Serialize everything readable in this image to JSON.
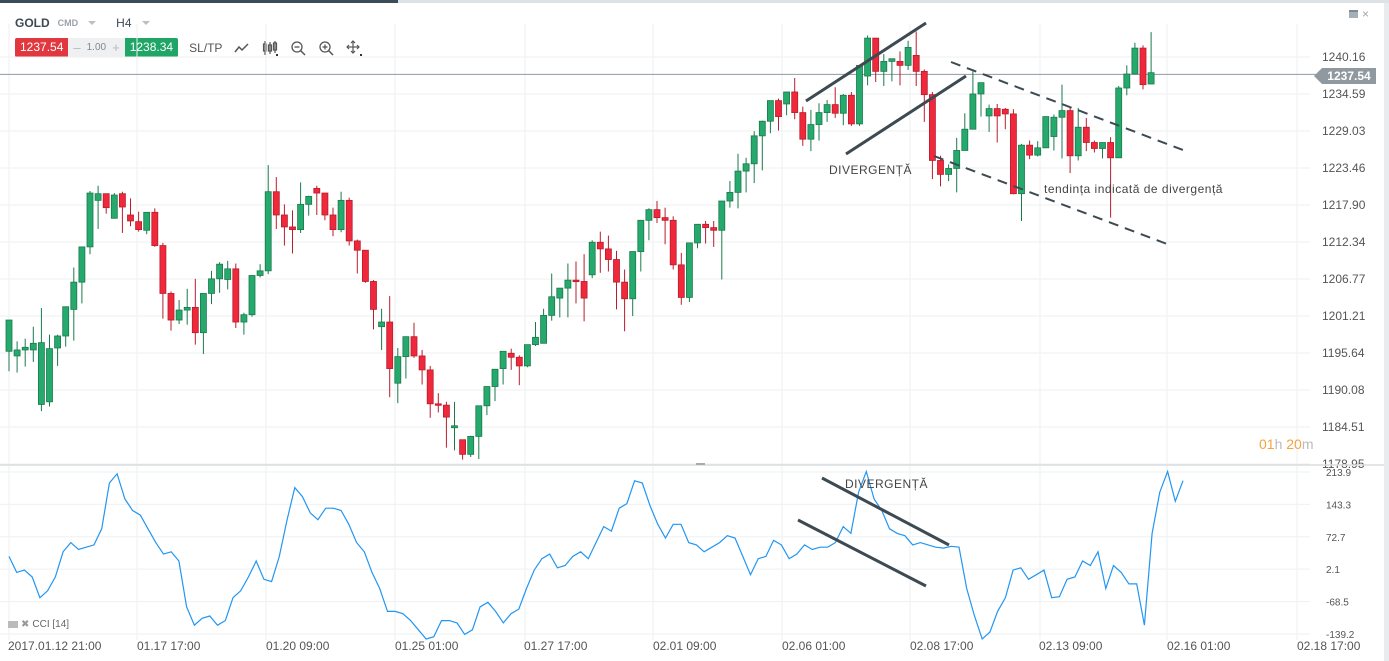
{
  "header": {
    "symbol": "GOLD",
    "symbol_type": "CMD",
    "timeframe": "H4",
    "sell_price": "1237.54",
    "quantity": "1.00",
    "minus": "–",
    "plus": "+",
    "buy_price": "1238.34",
    "sltp_label": "SL/TP",
    "tools": [
      "line-chart-icon",
      "candles-icon",
      "zoom-out-icon",
      "zoom-in-icon",
      "crosshair-icon"
    ]
  },
  "window": {
    "minimize": "minimize-icon",
    "close": "×"
  },
  "current_price_tag": "1237.54",
  "countdown": {
    "hours": "01",
    "h": "h",
    "minutes": "20",
    "m": "m"
  },
  "indicator": {
    "name": "CCI [14]"
  },
  "annotations": {
    "price_divergence": "DIVERGENȚĂ",
    "trend_text": "tendința indicată de divergență",
    "cci_divergence": "DIVERGENȚĂ"
  },
  "colors": {
    "up": "#26a96c",
    "down": "#f0283c",
    "up_border": "#1a7a4c",
    "down_border": "#b91c2c",
    "cci": "#2196f3",
    "annotation_line": "#3d4a52",
    "grid": "#eef0f2"
  },
  "chart_data": [
    {
      "type": "candlestick",
      "title": "GOLD H4",
      "ylabel": "Price",
      "ylim": [
        1178.95,
        1242.5
      ],
      "y_ticks": [
        1240.16,
        1234.59,
        1229.03,
        1223.46,
        1217.9,
        1212.34,
        1206.77,
        1201.21,
        1195.64,
        1190.08,
        1184.51,
        1178.95
      ],
      "x_ticks": [
        "2017.01.12 21:00",
        "01.17 17:00",
        "01.20 09:00",
        "01.25 01:00",
        "01.27 17:00",
        "02.01 09:00",
        "02.06 01:00",
        "02.08 17:00",
        "02.13 09:00",
        "02.16 01:00",
        "02.18 17:00"
      ],
      "current_price": 1237.54,
      "ohlc_pixels_note": "each candle: [open, high, low, close] in price",
      "candles": [
        [
          1195.9,
          1200.6,
          1192.9,
          1200.6
        ],
        [
          1195.2,
          1197.4,
          1192.7,
          1196.1
        ],
        [
          1196.1,
          1197.8,
          1193.6,
          1196.5
        ],
        [
          1196.1,
          1199.6,
          1194.3,
          1197.1
        ],
        [
          1187.9,
          1202.4,
          1186.9,
          1197.2
        ],
        [
          1188.3,
          1198.4,
          1187.6,
          1196.3
        ],
        [
          1196.4,
          1198.4,
          1193.7,
          1198.2
        ],
        [
          1198.2,
          1200.2,
          1196.6,
          1202.6
        ],
        [
          1202.2,
          1208.5,
          1197.5,
          1206.3
        ],
        [
          1206.3,
          1208.2,
          1203.1,
          1211.6
        ],
        [
          1211.6,
          1220.0,
          1210.5,
          1219.7
        ],
        [
          1218.6,
          1220.8,
          1214.3,
          1219.6
        ],
        [
          1219.6,
          1219.2,
          1216.6,
          1217.5
        ],
        [
          1215.9,
          1219.7,
          1216.9,
          1219.4
        ],
        [
          1219.6,
          1219.9,
          1213.7,
          1217.6
        ],
        [
          1216.4,
          1218.9,
          1214.7,
          1215.5
        ],
        [
          1215.4,
          1216.9,
          1213.9,
          1214.2
        ],
        [
          1214.1,
          1216.6,
          1213.5,
          1216.8
        ],
        [
          1216.8,
          1217.4,
          1211.6,
          1211.8
        ],
        [
          1211.8,
          1212.2,
          1200.8,
          1204.6
        ],
        [
          1204.6,
          1204.9,
          1199.0,
          1200.6
        ],
        [
          1200.6,
          1203.6,
          1200.0,
          1202.1
        ],
        [
          1202.1,
          1205.3,
          1199.9,
          1202.5
        ],
        [
          1202.5,
          1206.8,
          1196.9,
          1198.7
        ],
        [
          1198.7,
          1203.4,
          1195.5,
          1204.6
        ],
        [
          1204.6,
          1208.0,
          1203.0,
          1206.8
        ],
        [
          1206.8,
          1209.3,
          1204.7,
          1209.0
        ],
        [
          1206.7,
          1209.5,
          1205.2,
          1208.3
        ],
        [
          1208.3,
          1209.1,
          1199.4,
          1200.3
        ],
        [
          1200.3,
          1201.7,
          1198.4,
          1201.4
        ],
        [
          1201.4,
          1207.0,
          1201.1,
          1207.3
        ],
        [
          1207.3,
          1209.0,
          1207.0,
          1208.0
        ],
        [
          1208.0,
          1223.9,
          1207.5,
          1219.9
        ],
        [
          1219.9,
          1222.1,
          1214.3,
          1216.4
        ],
        [
          1216.4,
          1218.0,
          1211.8,
          1214.6
        ],
        [
          1214.6,
          1217.1,
          1210.6,
          1214.2
        ],
        [
          1214.2,
          1221.3,
          1213.7,
          1218.0
        ],
        [
          1218.0,
          1219.3,
          1216.3,
          1219.2
        ],
        [
          1220.4,
          1220.8,
          1216.4,
          1219.7
        ],
        [
          1219.7,
          1219.3,
          1215.6,
          1216.4
        ],
        [
          1216.4,
          1217.5,
          1213.2,
          1214.2
        ],
        [
          1214.2,
          1219.9,
          1213.8,
          1218.6
        ],
        [
          1218.6,
          1219.0,
          1211.8,
          1212.5
        ],
        [
          1212.5,
          1212.7,
          1207.6,
          1211.1
        ],
        [
          1211.1,
          1211.0,
          1206.2,
          1206.4
        ],
        [
          1206.4,
          1206.6,
          1199.2,
          1202.2
        ],
        [
          1199.6,
          1202.3,
          1196.1,
          1200.3
        ],
        [
          1200.3,
          1204.2,
          1189.0,
          1193.3
        ],
        [
          1191.1,
          1196.4,
          1188.1,
          1195.1
        ],
        [
          1195.1,
          1197.8,
          1191.8,
          1198.1
        ],
        [
          1198.1,
          1200.2,
          1194.9,
          1195.2
        ],
        [
          1195.2,
          1196.1,
          1190.9,
          1193.1
        ],
        [
          1193.1,
          1193.7,
          1185.9,
          1188.0
        ],
        [
          1188.0,
          1189.6,
          1186.7,
          1187.8
        ],
        [
          1187.8,
          1188.3,
          1181.4,
          1186.0
        ],
        [
          1184.4,
          1188.3,
          1181.0,
          1184.7
        ],
        [
          1182.6,
          1182.5,
          1179.6,
          1180.4
        ],
        [
          1180.4,
          1183.2,
          1180.0,
          1183.1
        ],
        [
          1183.1,
          1186.4,
          1179.7,
          1187.7
        ],
        [
          1187.7,
          1189.2,
          1186.3,
          1190.6
        ],
        [
          1190.6,
          1192.1,
          1188.4,
          1193.2
        ],
        [
          1193.3,
          1194.5,
          1190.9,
          1195.9
        ],
        [
          1195.6,
          1196.3,
          1193.1,
          1195.0
        ],
        [
          1195.0,
          1195.3,
          1190.8,
          1193.7
        ],
        [
          1193.7,
          1196.3,
          1193.5,
          1196.9
        ],
        [
          1196.9,
          1200.3,
          1196.7,
          1198.0
        ],
        [
          1197.1,
          1202.3,
          1197.7,
          1201.3
        ],
        [
          1201.3,
          1207.6,
          1200.5,
          1204.1
        ],
        [
          1203.9,
          1205.1,
          1201.0,
          1205.4
        ],
        [
          1205.4,
          1209.1,
          1201.0,
          1206.6
        ],
        [
          1206.6,
          1209.4,
          1203.1,
          1206.4
        ],
        [
          1206.4,
          1210.5,
          1200.4,
          1203.9
        ],
        [
          1207.4,
          1212.6,
          1206.9,
          1212.3
        ],
        [
          1212.3,
          1213.9,
          1207.7,
          1211.3
        ],
        [
          1211.3,
          1213.3,
          1207.9,
          1209.7
        ],
        [
          1209.7,
          1211.0,
          1202.2,
          1206.3
        ],
        [
          1206.3,
          1208.2,
          1198.9,
          1203.8
        ],
        [
          1203.8,
          1210.2,
          1201.2,
          1210.9
        ],
        [
          1210.9,
          1213.6,
          1207.9,
          1215.6
        ],
        [
          1215.6,
          1217.4,
          1212.6,
          1217.2
        ],
        [
          1217.2,
          1218.5,
          1215.2,
          1216.0
        ],
        [
          1216.0,
          1217.5,
          1212.0,
          1215.6
        ],
        [
          1215.6,
          1216.2,
          1208.2,
          1208.9
        ],
        [
          1208.9,
          1210.7,
          1202.9,
          1204.0
        ],
        [
          1204.0,
          1208.8,
          1203.3,
          1212.2
        ],
        [
          1212.2,
          1214.6,
          1211.4,
          1215.0
        ],
        [
          1215.0,
          1215.5,
          1212.1,
          1214.5
        ],
        [
          1214.5,
          1215.5,
          1211.6,
          1214.1
        ],
        [
          1214.1,
          1218.0,
          1206.7,
          1218.5
        ],
        [
          1218.5,
          1221.5,
          1217.5,
          1219.8
        ],
        [
          1219.8,
          1225.6,
          1217.4,
          1223.0
        ],
        [
          1223.0,
          1225.0,
          1219.8,
          1224.1
        ],
        [
          1224.1,
          1229.0,
          1221.2,
          1228.3
        ],
        [
          1228.3,
          1230.6,
          1223.1,
          1230.5
        ],
        [
          1230.5,
          1233.3,
          1228.7,
          1233.6
        ],
        [
          1233.6,
          1233.9,
          1229.1,
          1231.2
        ],
        [
          1233.1,
          1234.0,
          1231.4,
          1234.9
        ],
        [
          1234.9,
          1237.0,
          1230.8,
          1231.8
        ],
        [
          1231.8,
          1232.7,
          1226.8,
          1227.8
        ],
        [
          1227.8,
          1232.2,
          1226.0,
          1230.0
        ],
        [
          1230.0,
          1233.2,
          1227.6,
          1231.8
        ],
        [
          1231.8,
          1233.7,
          1230.4,
          1233.0
        ],
        [
          1233.0,
          1235.6,
          1231.0,
          1231.7
        ],
        [
          1231.7,
          1234.6,
          1229.9,
          1234.4
        ],
        [
          1234.4,
          1234.9,
          1229.8,
          1230.1
        ],
        [
          1230.1,
          1238.4,
          1229.8,
          1238.9
        ],
        [
          1237.3,
          1243.4,
          1235.9,
          1243.0
        ],
        [
          1243.0,
          1243.0,
          1236.4,
          1238.0
        ],
        [
          1238.0,
          1240.6,
          1235.8,
          1239.5
        ],
        [
          1239.5,
          1239.9,
          1236.5,
          1239.9
        ],
        [
          1239.5,
          1241.0,
          1235.9,
          1238.9
        ],
        [
          1238.9,
          1242.6,
          1238.2,
          1241.6
        ],
        [
          1240.4,
          1244.0,
          1235.8,
          1238.0
        ],
        [
          1238.0,
          1238.3,
          1230.4,
          1234.5
        ],
        [
          1234.5,
          1234.9,
          1221.8,
          1224.6
        ],
        [
          1224.6,
          1225.3,
          1220.7,
          1222.5
        ],
        [
          1222.5,
          1224.0,
          1221.5,
          1223.4
        ],
        [
          1223.4,
          1228.0,
          1219.8,
          1226.1
        ],
        [
          1226.1,
          1231.7,
          1226.8,
          1229.3
        ],
        [
          1229.3,
          1238.0,
          1229.4,
          1234.6
        ],
        [
          1234.6,
          1236.2,
          1231.2,
          1236.3
        ],
        [
          1231.3,
          1233.0,
          1228.9,
          1232.4
        ],
        [
          1232.4,
          1233.1,
          1227.3,
          1231.3
        ],
        [
          1232.3,
          1232.5,
          1229.3,
          1231.6
        ],
        [
          1231.6,
          1232.3,
          1219.5,
          1219.6
        ],
        [
          1219.6,
          1227.1,
          1215.5,
          1226.9
        ],
        [
          1226.9,
          1227.6,
          1224.8,
          1225.4
        ],
        [
          1225.4,
          1227.5,
          1225.2,
          1226.5
        ],
        [
          1226.5,
          1231.0,
          1226.5,
          1231.2
        ],
        [
          1228.2,
          1231.5,
          1226.1,
          1231.1
        ],
        [
          1231.1,
          1236.0,
          1224.9,
          1232.1
        ],
        [
          1232.1,
          1232.6,
          1222.7,
          1225.3
        ],
        [
          1225.3,
          1232.5,
          1224.6,
          1229.6
        ],
        [
          1229.6,
          1231.0,
          1226.0,
          1227.3
        ],
        [
          1227.3,
          1227.6,
          1225.8,
          1226.4
        ],
        [
          1226.4,
          1227.2,
          1224.9,
          1227.3
        ],
        [
          1227.3,
          1228.1,
          1216.0,
          1225.0
        ],
        [
          1225.0,
          1235.8,
          1226.0,
          1235.5
        ],
        [
          1235.5,
          1238.9,
          1234.4,
          1237.6
        ],
        [
          1237.6,
          1242.3,
          1238.0,
          1241.5
        ],
        [
          1241.5,
          1241.9,
          1235.3,
          1236.0
        ],
        [
          1236.1,
          1243.9,
          1236.2,
          1237.8
        ]
      ]
    },
    {
      "type": "line",
      "title": "CCI [14]",
      "ylim": [
        -139.2,
        213.9
      ],
      "y_ticks": [
        213.9,
        143.3,
        72.7,
        2.1,
        -68.5,
        -139.2
      ],
      "series": [
        {
          "name": "CCI [14]",
          "values": [
            30,
            -5,
            0,
            -15,
            -60,
            -45,
            -15,
            40,
            60,
            45,
            50,
            55,
            90,
            190,
            210,
            155,
            130,
            120,
            90,
            60,
            35,
            40,
            20,
            -80,
            -120,
            -105,
            -100,
            -120,
            -110,
            -60,
            -45,
            -15,
            20,
            -20,
            -25,
            30,
            110,
            180,
            160,
            125,
            110,
            135,
            135,
            130,
            100,
            60,
            40,
            -5,
            -40,
            -90,
            -90,
            -95,
            -110,
            -130,
            -150,
            -145,
            -110,
            -110,
            -115,
            -140,
            -130,
            -80,
            -70,
            -90,
            -115,
            -95,
            -85,
            -40,
            0,
            25,
            35,
            5,
            10,
            30,
            40,
            25,
            60,
            95,
            85,
            135,
            145,
            195,
            190,
            140,
            100,
            70,
            100,
            100,
            60,
            55,
            40,
            50,
            60,
            75,
            70,
            30,
            -10,
            25,
            30,
            65,
            55,
            25,
            35,
            55,
            45,
            50,
            50,
            60,
            95,
            80,
            170,
            215,
            155,
            130,
            90,
            80,
            75,
            55,
            60,
            55,
            50,
            48,
            52,
            50,
            -40,
            -100,
            -150,
            -135,
            -90,
            -60,
            0,
            5,
            -20,
            -10,
            0,
            -60,
            -58,
            -20,
            -15,
            20,
            10,
            40,
            -40,
            10,
            -5,
            -30,
            -30,
            -120,
            80,
            170,
            215,
            150,
            195
          ]
        }
      ]
    }
  ],
  "price_axis": [
    "1240.16",
    "1234.59",
    "1229.03",
    "1223.46",
    "1217.90",
    "1212.34",
    "1206.77",
    "1201.21",
    "1195.64",
    "1190.08",
    "1184.51",
    "1178.95"
  ],
  "cci_axis": [
    "213.9",
    "143.3",
    "72.7",
    "2.1",
    "-68.5",
    "-139.2"
  ],
  "time_axis": [
    "2017.01.12 21:00",
    "01.17 17:00",
    "01.20 09:00",
    "01.25 01:00",
    "01.27 17:00",
    "02.01 09:00",
    "02.06 01:00",
    "02.08 17:00",
    "02.13 09:00",
    "02.16 01:00",
    "02.18 17:00"
  ]
}
